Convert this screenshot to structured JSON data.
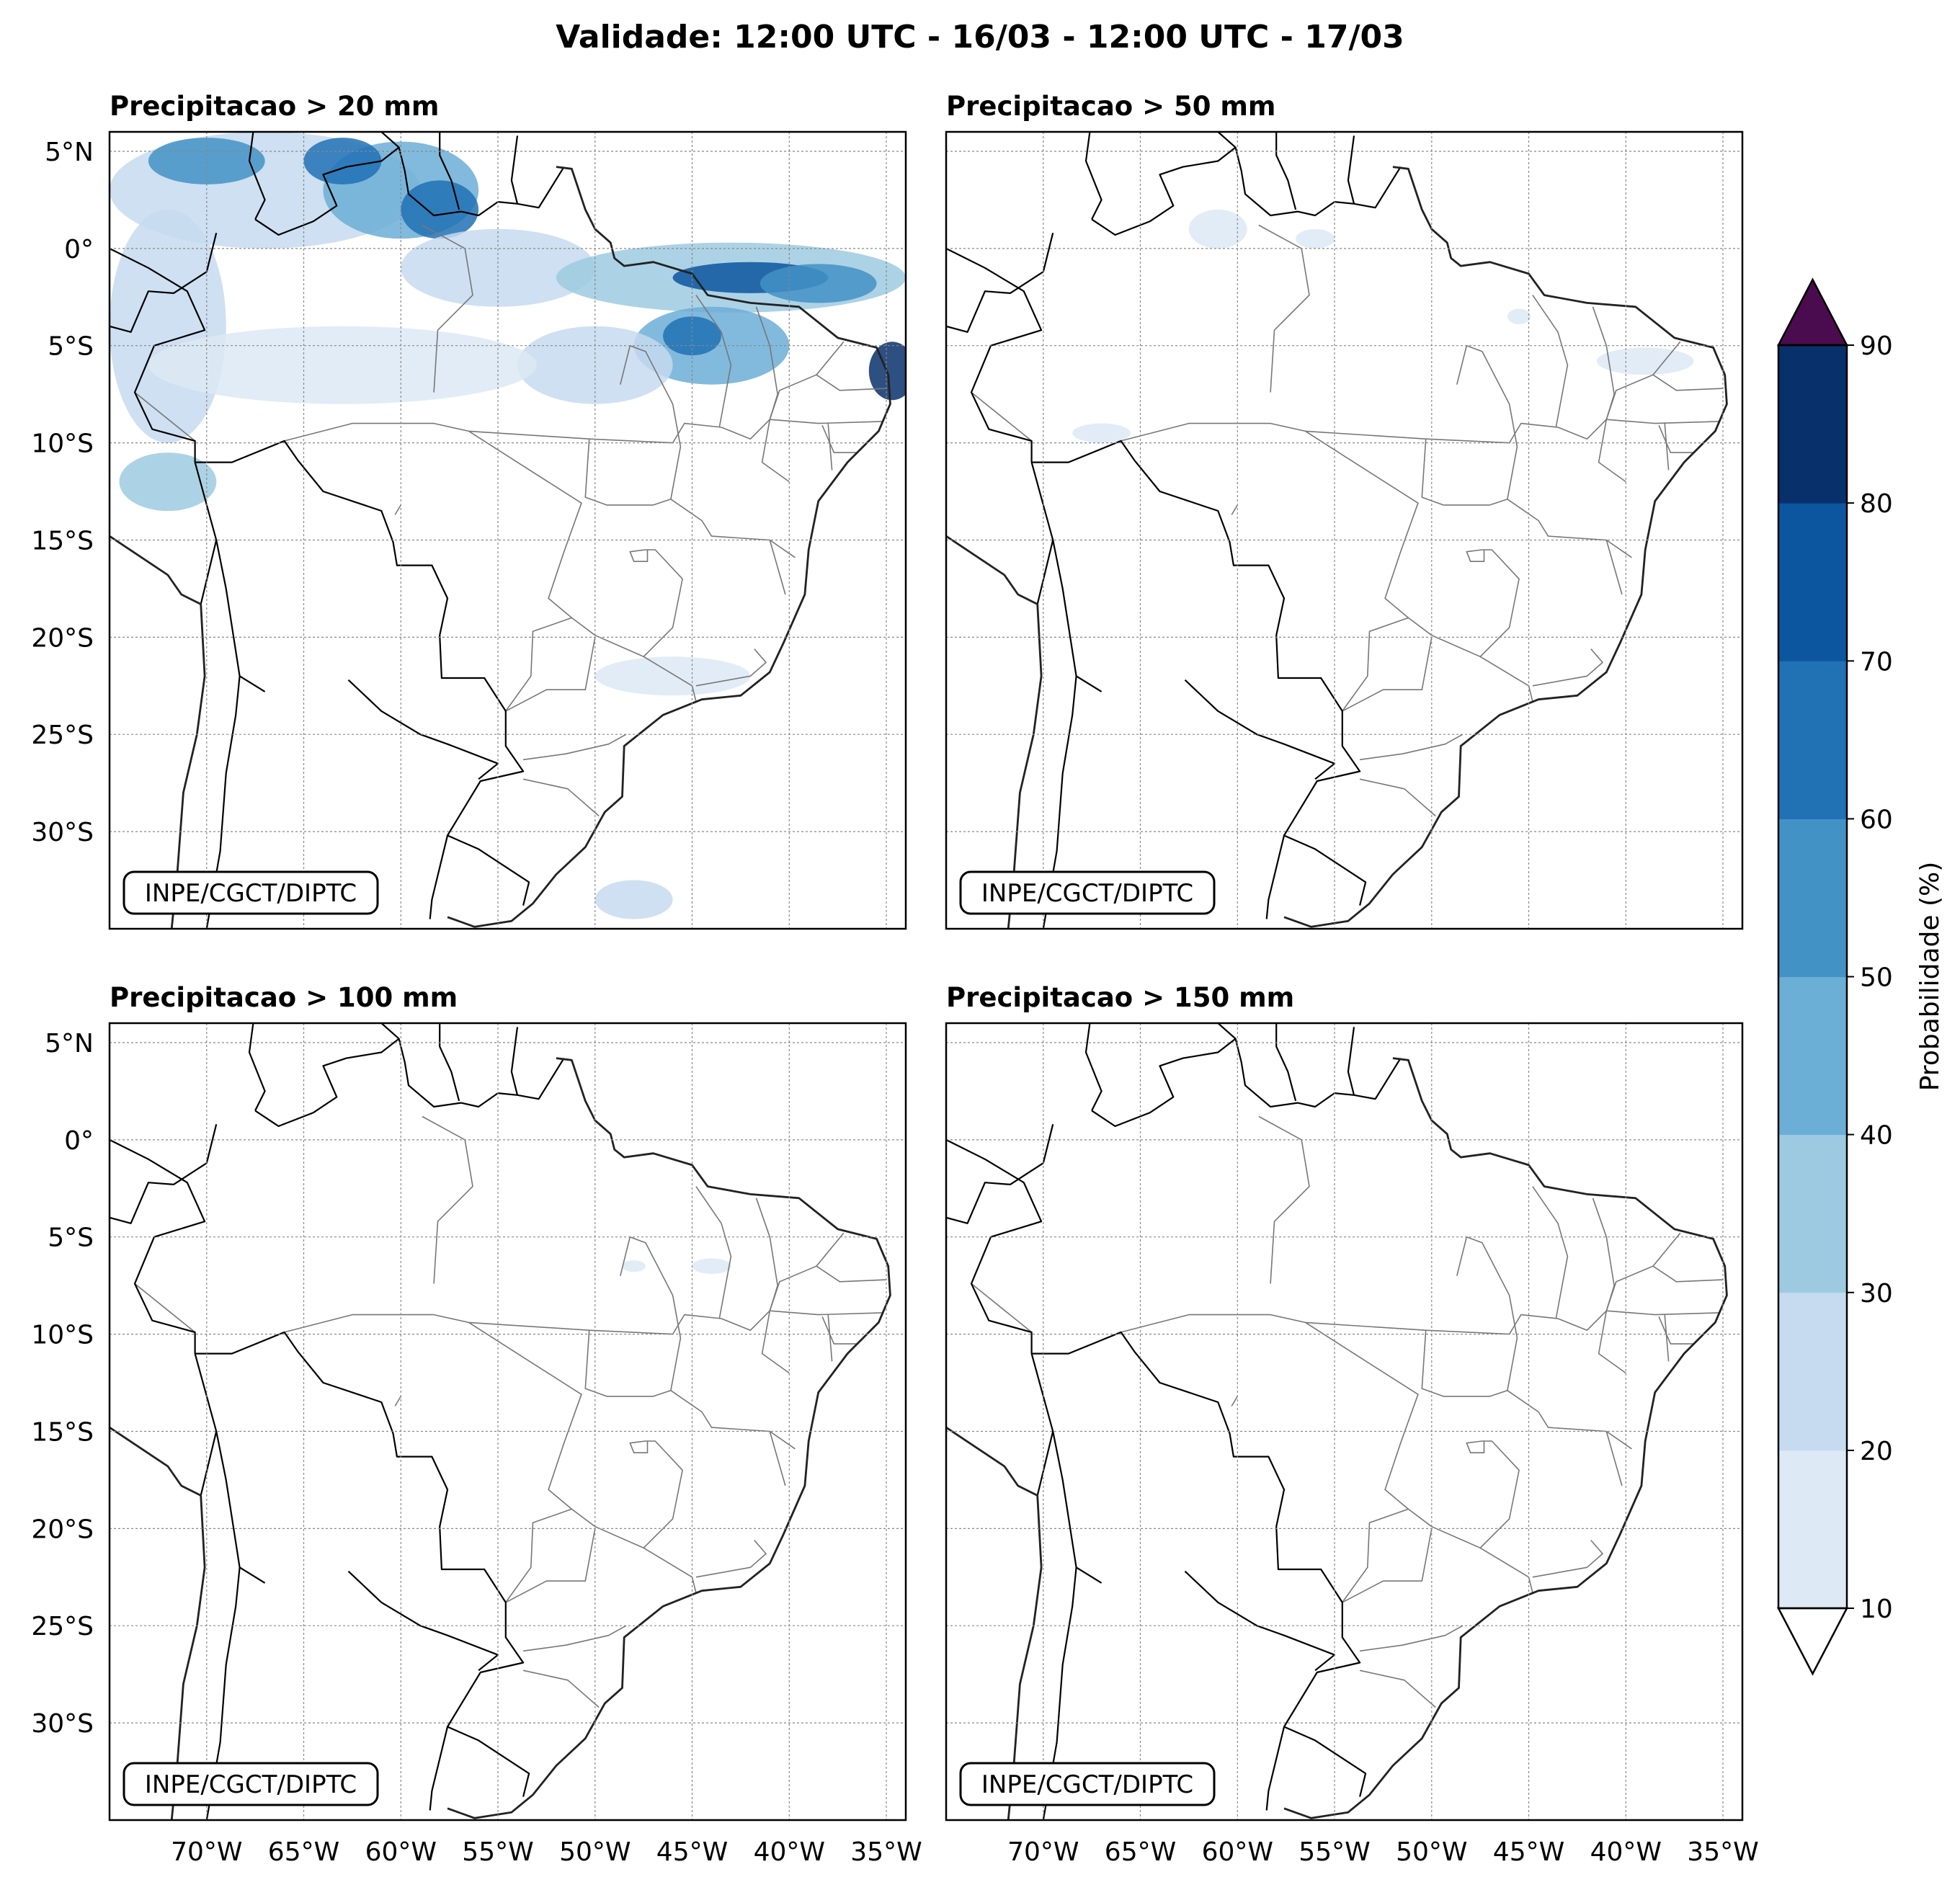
{
  "title": "Validade: 12:00 UTC - 16/03 - 12:00 UTC - 17/03",
  "credit": "INPE/CGCT/DIPTC",
  "extent": {
    "lon_min": -75,
    "lon_max": -34,
    "lat_min": -35,
    "lat_max": 6
  },
  "lat_ticks": [
    {
      "value": 5,
      "label": "5°N"
    },
    {
      "value": 0,
      "label": "0°"
    },
    {
      "value": -5,
      "label": "5°S"
    },
    {
      "value": -10,
      "label": "10°S"
    },
    {
      "value": -15,
      "label": "15°S"
    },
    {
      "value": -20,
      "label": "20°S"
    },
    {
      "value": -25,
      "label": "25°S"
    },
    {
      "value": -30,
      "label": "30°S"
    }
  ],
  "lon_ticks": [
    {
      "value": -70,
      "label": "70°W"
    },
    {
      "value": -65,
      "label": "65°W"
    },
    {
      "value": -60,
      "label": "60°W"
    },
    {
      "value": -55,
      "label": "55°W"
    },
    {
      "value": -50,
      "label": "50°W"
    },
    {
      "value": -45,
      "label": "45°W"
    },
    {
      "value": -40,
      "label": "40°W"
    },
    {
      "value": -35,
      "label": "35°W"
    }
  ],
  "panels": [
    {
      "title": "Precipitacao > 20 mm",
      "threshold_mm": 20,
      "areas": [
        {
          "lon": -67,
          "lat": 3,
          "rlon": 8,
          "rlat": 3,
          "prob": 25
        },
        {
          "lon": -70,
          "lat": 4.5,
          "rlon": 3,
          "rlat": 1.2,
          "prob": 55
        },
        {
          "lon": -60,
          "lat": 3,
          "rlon": 4,
          "rlat": 2.5,
          "prob": 45
        },
        {
          "lon": -58,
          "lat": 2,
          "rlon": 2,
          "rlat": 1.5,
          "prob": 65
        },
        {
          "lon": -63,
          "lat": 4.5,
          "rlon": 2,
          "rlat": 1.2,
          "prob": 60
        },
        {
          "lon": -55,
          "lat": -1,
          "rlon": 5,
          "rlat": 2,
          "prob": 20
        },
        {
          "lon": -43,
          "lat": -1.5,
          "rlon": 9,
          "rlat": 1.8,
          "prob": 35
        },
        {
          "lon": -42,
          "lat": -1.5,
          "rlon": 4,
          "rlat": 0.8,
          "prob": 70
        },
        {
          "lon": -38.5,
          "lat": -1.8,
          "rlon": 3,
          "rlat": 1,
          "prob": 55
        },
        {
          "lon": -44,
          "lat": -5,
          "rlon": 4,
          "rlat": 2,
          "prob": 40
        },
        {
          "lon": -45,
          "lat": -4.5,
          "rlon": 1.5,
          "rlat": 1,
          "prob": 65
        },
        {
          "lon": -50,
          "lat": -6,
          "rlon": 4,
          "rlat": 2,
          "prob": 25
        },
        {
          "lon": -34.7,
          "lat": -6.3,
          "rlon": 1.2,
          "rlat": 1.5,
          "prob": 80
        },
        {
          "lon": -72,
          "lat": -4,
          "rlon": 3,
          "rlat": 6,
          "prob": 20
        },
        {
          "lon": -72,
          "lat": -12,
          "rlon": 2.5,
          "rlat": 1.5,
          "prob": 30
        },
        {
          "lon": -63,
          "lat": -6,
          "rlon": 10,
          "rlat": 2,
          "prob": 15
        },
        {
          "lon": -46,
          "lat": -22,
          "rlon": 4,
          "rlat": 1,
          "prob": 15
        },
        {
          "lon": -48,
          "lat": -33.5,
          "rlon": 2,
          "rlat": 1,
          "prob": 25
        }
      ]
    },
    {
      "title": "Precipitacao > 50 mm",
      "threshold_mm": 50,
      "areas": [
        {
          "lon": -61,
          "lat": 1,
          "rlon": 1.5,
          "rlat": 1,
          "prob": 15
        },
        {
          "lon": -56,
          "lat": 0.5,
          "rlon": 1,
          "rlat": 0.5,
          "prob": 15
        },
        {
          "lon": -39,
          "lat": -5.8,
          "rlon": 2.5,
          "rlat": 0.7,
          "prob": 15
        },
        {
          "lon": -45.5,
          "lat": -3.5,
          "rlon": 0.6,
          "rlat": 0.4,
          "prob": 15
        },
        {
          "lon": -67,
          "lat": -9.5,
          "rlon": 1.5,
          "rlat": 0.5,
          "prob": 15
        }
      ]
    },
    {
      "title": "Precipitacao > 100 mm",
      "threshold_mm": 100,
      "areas": [
        {
          "lon": -44,
          "lat": -6.5,
          "rlon": 1,
          "rlat": 0.4,
          "prob": 15
        },
        {
          "lon": -48,
          "lat": -6.5,
          "rlon": 0.6,
          "rlat": 0.3,
          "prob": 15
        }
      ]
    },
    {
      "title": "Precipitacao > 150 mm",
      "threshold_mm": 150,
      "areas": []
    }
  ],
  "colorbar": {
    "label": "Probabilidade (%)",
    "levels": [
      10,
      20,
      30,
      40,
      50,
      60,
      70,
      80,
      90
    ],
    "colors": [
      "#dde9f5",
      "#c6dbef",
      "#9ecae1",
      "#6baed6",
      "#4292c6",
      "#2171b5",
      "#0c56a0",
      "#08306b"
    ],
    "over_color": "#4a0c4e",
    "under_color": "#ffffff"
  },
  "geo": {
    "coast": [
      [
        -52,
        4.2
      ],
      [
        -51.2,
        4.1
      ],
      [
        -50.5,
        2
      ],
      [
        -50,
        1
      ],
      [
        -49.2,
        0.3
      ],
      [
        -49,
        -0.5
      ],
      [
        -48.5,
        -0.9
      ],
      [
        -47,
        -0.7
      ],
      [
        -45,
        -1.3
      ],
      [
        -44.2,
        -2.4
      ],
      [
        -42,
        -2.8
      ],
      [
        -39.5,
        -3
      ],
      [
        -37.5,
        -4.6
      ],
      [
        -35.5,
        -5.1
      ],
      [
        -34.9,
        -6.5
      ],
      [
        -34.8,
        -8
      ],
      [
        -35.4,
        -9.4
      ],
      [
        -37,
        -11
      ],
      [
        -38.5,
        -13
      ],
      [
        -39,
        -15.5
      ],
      [
        -39.2,
        -17.8
      ],
      [
        -40.3,
        -20.3
      ],
      [
        -41,
        -21.8
      ],
      [
        -42.5,
        -23
      ],
      [
        -44.5,
        -23.2
      ],
      [
        -46.5,
        -24
      ],
      [
        -48.5,
        -25.6
      ],
      [
        -48.6,
        -28.2
      ],
      [
        -49.5,
        -29
      ],
      [
        -50.5,
        -30.8
      ],
      [
        -52,
        -32.2
      ],
      [
        -53.2,
        -33.7
      ],
      [
        -54.3,
        -34.6
      ],
      [
        -56.2,
        -34.9
      ],
      [
        -57.6,
        -34.4
      ]
    ],
    "west_coast": [
      [
        -81,
        -6
      ],
      [
        -79,
        -8
      ],
      [
        -77,
        -12
      ],
      [
        -76.2,
        -14
      ],
      [
        -72,
        -16.8
      ],
      [
        -71.3,
        -17.8
      ],
      [
        -70.3,
        -18.3
      ],
      [
        -70.1,
        -22
      ],
      [
        -70.5,
        -25
      ],
      [
        -71.2,
        -28
      ],
      [
        -71.5,
        -32
      ],
      [
        -71.8,
        -35
      ]
    ],
    "borders": [
      [
        [
          -75,
          0
        ],
        [
          -73,
          -1
        ],
        [
          -71,
          -2.2
        ],
        [
          -70.1,
          -4.2
        ],
        [
          -72.7,
          -5
        ],
        [
          -73.7,
          -7.4
        ],
        [
          -72.8,
          -9.3
        ],
        [
          -70.6,
          -9.9
        ],
        [
          -70.6,
          -11
        ]
      ],
      [
        [
          -70.6,
          -11
        ],
        [
          -68.7,
          -11
        ],
        [
          -66,
          -9.9
        ],
        [
          -65.3,
          -10.9
        ],
        [
          -64,
          -12.5
        ],
        [
          -61,
          -13.5
        ],
        [
          -60.4,
          -15.1
        ],
        [
          -60.2,
          -16.3
        ],
        [
          -58.4,
          -16.3
        ],
        [
          -57.6,
          -18
        ],
        [
          -58,
          -19.9
        ],
        [
          -57.9,
          -22.1
        ],
        [
          -55.7,
          -22.1
        ],
        [
          -54.6,
          -23.8
        ],
        [
          -54.6,
          -25.6
        ],
        [
          -53.7,
          -26.9
        ],
        [
          -55.9,
          -27.4
        ],
        [
          -57.6,
          -30.2
        ],
        [
          -56,
          -30.9
        ],
        [
          -53.4,
          -32.6
        ],
        [
          -53.7,
          -33.8
        ]
      ],
      [
        [
          -70.6,
          -11
        ],
        [
          -69.5,
          -15
        ],
        [
          -69,
          -17.5
        ],
        [
          -68.3,
          -22
        ],
        [
          -67,
          -22.8
        ]
      ],
      [
        [
          -69.5,
          -15
        ],
        [
          -70.3,
          -18.3
        ]
      ],
      [
        [
          -68.3,
          -22
        ],
        [
          -68.5,
          -24
        ],
        [
          -69,
          -27
        ],
        [
          -69.3,
          -31
        ],
        [
          -70,
          -35
        ]
      ],
      [
        [
          -62.7,
          -22.2
        ],
        [
          -61,
          -23.8
        ],
        [
          -59,
          -25
        ],
        [
          -57.6,
          -25.5
        ],
        [
          -55,
          -26.5
        ],
        [
          -56,
          -27.3
        ]
      ],
      [
        [
          -57.6,
          -30.2
        ],
        [
          -58.4,
          -33.5
        ],
        [
          -58.5,
          -34.5
        ]
      ],
      [
        [
          -67.5,
          1.5
        ],
        [
          -67,
          2.5
        ],
        [
          -67.8,
          4.5
        ],
        [
          -67.6,
          6
        ]
      ],
      [
        [
          -67.5,
          1.5
        ],
        [
          -66.3,
          0.7
        ],
        [
          -64.5,
          1.4
        ],
        [
          -63.3,
          2.2
        ],
        [
          -64,
          3.8
        ],
        [
          -62.8,
          4.2
        ],
        [
          -61,
          4.5
        ],
        [
          -60.1,
          5.2
        ],
        [
          -61,
          6
        ]
      ],
      [
        [
          -60.1,
          5.2
        ],
        [
          -59.8,
          4
        ],
        [
          -59.6,
          2.8
        ],
        [
          -58.3,
          1.7
        ],
        [
          -56.9,
          1.9
        ],
        [
          -56,
          1.7
        ],
        [
          -55,
          2.4
        ],
        [
          -54,
          2.3
        ],
        [
          -52.9,
          2.1
        ],
        [
          -51.6,
          4.2
        ]
      ],
      [
        [
          -57,
          2
        ],
        [
          -57.4,
          3.5
        ],
        [
          -58,
          4.8
        ],
        [
          -58,
          6
        ]
      ],
      [
        [
          -54,
          2.3
        ],
        [
          -54.3,
          3.5
        ],
        [
          -54,
          5.8
        ]
      ],
      [
        [
          -75,
          -4
        ],
        [
          -73.9,
          -4.3
        ],
        [
          -73,
          -2.2
        ],
        [
          -71.7,
          -2.3
        ],
        [
          -70,
          -1.2
        ],
        [
          -69.5,
          0.8
        ]
      ]
    ],
    "states": [
      [
        [
          -73.7,
          -7.4
        ],
        [
          -70.6,
          -9.9
        ]
      ],
      [
        [
          -66,
          -9.9
        ],
        [
          -62.5,
          -9
        ],
        [
          -58.3,
          -9
        ],
        [
          -56.5,
          -9.4
        ],
        [
          -50.3,
          -9.8
        ],
        [
          -46,
          -10
        ]
      ],
      [
        [
          -58.3,
          -7.4
        ],
        [
          -58.1,
          -4.2
        ],
        [
          -56.3,
          -2.4
        ],
        [
          -56.7,
          0
        ],
        [
          -58.9,
          1.2
        ]
      ],
      [
        [
          -60.3,
          -13.7
        ],
        [
          -60,
          -13.2
        ]
      ],
      [
        [
          -56.5,
          -9.4
        ],
        [
          -54,
          -11
        ],
        [
          -50.7,
          -13.1
        ],
        [
          -51.6,
          -15.6
        ],
        [
          -52.4,
          -18
        ],
        [
          -51.2,
          -19
        ],
        [
          -50,
          -19.9
        ],
        [
          -47.5,
          -21
        ],
        [
          -45,
          -22.5
        ],
        [
          -44.8,
          -23.3
        ]
      ],
      [
        [
          -51.2,
          -19
        ],
        [
          -53.2,
          -19.7
        ],
        [
          -53.3,
          -22
        ],
        [
          -54.6,
          -23.8
        ]
      ],
      [
        [
          -50,
          -20
        ],
        [
          -50.5,
          -22.7
        ],
        [
          -52.5,
          -22.7
        ],
        [
          -54.6,
          -23.8
        ]
      ],
      [
        [
          -48.4,
          -25
        ],
        [
          -49.3,
          -25.5
        ],
        [
          -51.5,
          -26
        ],
        [
          -53.7,
          -26.3
        ]
      ],
      [
        [
          -49.8,
          -29.2
        ],
        [
          -51.4,
          -27.8
        ],
        [
          -53.7,
          -27.3
        ]
      ],
      [
        [
          -50.3,
          -9.8
        ],
        [
          -50.5,
          -12.8
        ],
        [
          -49.4,
          -13.2
        ],
        [
          -47,
          -13.2
        ],
        [
          -46.1,
          -12.9
        ],
        [
          -45.6,
          -10.2
        ],
        [
          -46,
          -8
        ],
        [
          -47.4,
          -5.3
        ],
        [
          -48.2,
          -5
        ],
        [
          -48.7,
          -7
        ]
      ],
      [
        [
          -46,
          -10
        ],
        [
          -45.4,
          -9
        ],
        [
          -43.5,
          -9.2
        ],
        [
          -42,
          -9.8
        ],
        [
          -41,
          -8.8
        ]
      ],
      [
        [
          -41.7,
          -3
        ],
        [
          -41,
          -5
        ],
        [
          -40.6,
          -7.5
        ],
        [
          -41,
          -8.8
        ],
        [
          -41.4,
          -11
        ],
        [
          -40,
          -12
        ]
      ],
      [
        [
          -44.8,
          -2.4
        ],
        [
          -43.5,
          -4.3
        ],
        [
          -43,
          -6
        ],
        [
          -43.6,
          -9.2
        ]
      ],
      [
        [
          -46.1,
          -12.9
        ],
        [
          -44.5,
          -14
        ],
        [
          -44,
          -14.8
        ],
        [
          -41,
          -15
        ],
        [
          -39.7,
          -15.9
        ]
      ],
      [
        [
          -41,
          -15
        ],
        [
          -40.2,
          -17.8
        ]
      ],
      [
        [
          -41.8,
          -20.6
        ],
        [
          -41.2,
          -21.3
        ],
        [
          -42,
          -22
        ],
        [
          -44.8,
          -22.5
        ]
      ],
      [
        [
          -47.5,
          -21
        ],
        [
          -46,
          -19.5
        ],
        [
          -45.5,
          -17
        ],
        [
          -46.9,
          -15.5
        ],
        [
          -47.4,
          -15.5
        ],
        [
          -48.2,
          -15.6
        ],
        [
          -48,
          -16.1
        ],
        [
          -47.3,
          -16.1
        ],
        [
          -47.3,
          -15.5
        ]
      ],
      [
        [
          -37.2,
          -4.8
        ],
        [
          -38.6,
          -6.5
        ],
        [
          -37.4,
          -7.3
        ],
        [
          -35,
          -7.2
        ]
      ],
      [
        [
          -38.6,
          -6.5
        ],
        [
          -40.5,
          -7.3
        ],
        [
          -41,
          -8.8
        ],
        [
          -38.5,
          -9
        ],
        [
          -35.2,
          -8.9
        ]
      ],
      [
        [
          -38.3,
          -9.1
        ],
        [
          -37.7,
          -10.5
        ],
        [
          -36.5,
          -10.5
        ]
      ],
      [
        [
          -38,
          -9
        ],
        [
          -37.8,
          -11.4
        ]
      ]
    ]
  }
}
